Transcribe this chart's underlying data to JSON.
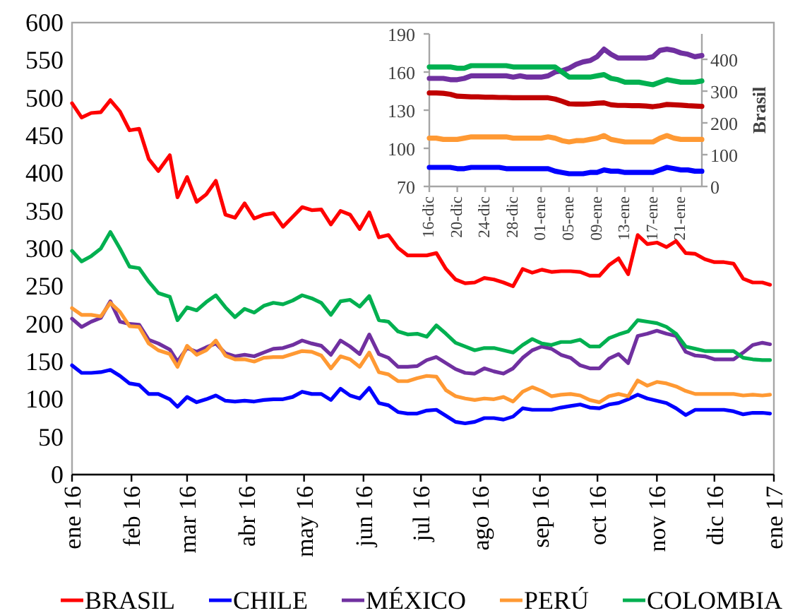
{
  "chart_data": [
    {
      "type": "line",
      "x": [
        "2016-01-01",
        "2016-01-06",
        "2016-01-11",
        "2016-01-16",
        "2016-01-21",
        "2016-01-26",
        "2016-01-31",
        "2016-02-05",
        "2016-02-10",
        "2016-02-15",
        "2016-02-21",
        "2016-02-25",
        "2016-03-01",
        "2016-03-06",
        "2016-03-11",
        "2016-03-16",
        "2016-03-21",
        "2016-03-26",
        "2016-03-31",
        "2016-04-05",
        "2016-04-10",
        "2016-04-15",
        "2016-04-20",
        "2016-04-25",
        "2016-04-30",
        "2016-05-05",
        "2016-05-10",
        "2016-05-15",
        "2016-05-20",
        "2016-05-25",
        "2016-05-30",
        "2016-06-04",
        "2016-06-09",
        "2016-06-14",
        "2016-06-19",
        "2016-06-24",
        "2016-06-29",
        "2016-07-04",
        "2016-07-09",
        "2016-07-14",
        "2016-07-19",
        "2016-07-24",
        "2016-07-29",
        "2016-08-03",
        "2016-08-08",
        "2016-08-13",
        "2016-08-18",
        "2016-08-23",
        "2016-08-28",
        "2016-09-02",
        "2016-09-07",
        "2016-09-12",
        "2016-09-17",
        "2016-09-22",
        "2016-09-27",
        "2016-10-02",
        "2016-10-07",
        "2016-10-12",
        "2016-10-17",
        "2016-10-22",
        "2016-10-27",
        "2016-11-01",
        "2016-11-06",
        "2016-11-11",
        "2016-11-16",
        "2016-11-21",
        "2016-11-26",
        "2016-12-01",
        "2016-12-06",
        "2016-12-11",
        "2016-12-16",
        "2016-12-21",
        "2016-12-26",
        "2016-12-30"
      ],
      "series": [
        {
          "name": "BRASIL",
          "color": "#ff0000",
          "values": [
            493,
            474,
            480,
            481,
            497,
            482,
            457,
            459,
            419,
            403,
            424,
            368,
            395,
            362,
            372,
            390,
            345,
            341,
            360,
            340,
            345,
            347,
            329,
            342,
            355,
            351,
            352,
            332,
            350,
            345,
            326,
            348,
            315,
            318,
            301,
            291,
            291,
            291,
            294,
            273,
            259,
            254,
            255,
            261,
            259,
            255,
            250,
            273,
            268,
            272,
            269,
            270,
            270,
            269,
            264,
            264,
            278,
            287,
            266,
            318,
            306,
            308,
            302,
            310,
            294,
            293,
            286,
            282,
            282,
            280,
            260,
            255,
            255,
            252
          ]
        },
        {
          "name": "CHILE",
          "color": "#0000ff",
          "values": [
            145,
            135,
            135,
            136,
            139,
            131,
            121,
            119,
            107,
            107,
            100,
            90,
            103,
            96,
            100,
            105,
            98,
            97,
            98,
            97,
            99,
            100,
            100,
            103,
            110,
            107,
            107,
            99,
            114,
            105,
            101,
            115,
            95,
            92,
            83,
            81,
            81,
            85,
            86,
            78,
            70,
            68,
            70,
            75,
            75,
            73,
            77,
            88,
            86,
            86,
            86,
            89,
            91,
            93,
            89,
            88,
            93,
            95,
            100,
            106,
            101,
            98,
            95,
            88,
            79,
            86,
            86,
            86,
            86,
            84,
            80,
            82,
            82,
            81
          ]
        },
        {
          "name": "MÉXICO",
          "color": "#7030a0",
          "values": [
            207,
            196,
            203,
            208,
            230,
            203,
            200,
            199,
            179,
            174,
            166,
            150,
            168,
            163,
            169,
            174,
            161,
            157,
            159,
            157,
            162,
            167,
            168,
            172,
            178,
            174,
            171,
            159,
            178,
            170,
            160,
            186,
            160,
            155,
            143,
            143,
            144,
            152,
            156,
            148,
            140,
            135,
            134,
            141,
            137,
            134,
            141,
            155,
            165,
            170,
            167,
            159,
            155,
            145,
            141,
            141,
            154,
            160,
            148,
            184,
            187,
            191,
            187,
            184,
            163,
            158,
            157,
            153,
            153,
            153,
            162,
            172,
            175,
            173
          ]
        },
        {
          "name": "PERÚ",
          "color": "#ff9933",
          "values": [
            221,
            212,
            212,
            210,
            228,
            216,
            197,
            196,
            174,
            165,
            160,
            143,
            171,
            159,
            165,
            178,
            158,
            153,
            153,
            150,
            155,
            156,
            156,
            160,
            164,
            163,
            158,
            141,
            157,
            153,
            143,
            162,
            136,
            133,
            124,
            124,
            128,
            131,
            130,
            112,
            104,
            101,
            99,
            101,
            100,
            103,
            97,
            110,
            116,
            111,
            104,
            106,
            107,
            105,
            99,
            96,
            104,
            107,
            104,
            125,
            118,
            123,
            121,
            117,
            111,
            107,
            107,
            107,
            107,
            107,
            105,
            106,
            105,
            106
          ]
        },
        {
          "name": "COLOMBIA",
          "color": "#00b050",
          "values": [
            297,
            283,
            290,
            300,
            322,
            300,
            276,
            274,
            256,
            241,
            236,
            205,
            222,
            218,
            229,
            238,
            222,
            209,
            220,
            215,
            224,
            228,
            226,
            231,
            238,
            234,
            228,
            212,
            230,
            232,
            223,
            237,
            205,
            203,
            190,
            186,
            187,
            183,
            198,
            187,
            175,
            170,
            165,
            168,
            168,
            165,
            162,
            172,
            180,
            174,
            172,
            176,
            176,
            179,
            170,
            170,
            181,
            186,
            190,
            205,
            203,
            201,
            196,
            187,
            170,
            167,
            164,
            164,
            164,
            164,
            155,
            153,
            152,
            152
          ]
        }
      ],
      "xlim": [
        "2016-01-01",
        "2017-01-01"
      ],
      "xticks": [
        {
          "value": "2016-01-01",
          "label": "ene 16"
        },
        {
          "value": "2016-02-01",
          "label": "feb 16"
        },
        {
          "value": "2016-03-01",
          "label": "mar 16"
        },
        {
          "value": "2016-04-01",
          "label": "abr 16"
        },
        {
          "value": "2016-05-01",
          "label": "may 16"
        },
        {
          "value": "2016-06-01",
          "label": "jun 16"
        },
        {
          "value": "2016-07-01",
          "label": "jul 16"
        },
        {
          "value": "2016-08-01",
          "label": "ago 16"
        },
        {
          "value": "2016-09-01",
          "label": "sep 16"
        },
        {
          "value": "2016-10-01",
          "label": "oct 16"
        },
        {
          "value": "2016-11-01",
          "label": "nov 16"
        },
        {
          "value": "2016-12-01",
          "label": "dic 16"
        },
        {
          "value": "2017-01-01",
          "label": "ene 17"
        }
      ],
      "ylim": [
        0,
        600
      ],
      "yticks": [
        0,
        50,
        100,
        150,
        200,
        250,
        300,
        350,
        400,
        450,
        500,
        550,
        600
      ],
      "legend": "bottom"
    },
    {
      "type": "line",
      "categories": [
        "16-dic",
        null,
        null,
        null,
        "20-dic",
        null,
        null,
        null,
        "24-dic",
        null,
        null,
        null,
        "28-dic",
        null,
        null,
        null,
        "01-ene",
        null,
        null,
        null,
        "05-ene",
        null,
        null,
        null,
        "09-ene",
        null,
        null,
        null,
        "13-ene",
        null,
        null,
        null,
        "17-ene",
        null,
        null,
        null,
        "21-ene",
        null,
        null,
        null
      ],
      "series": [
        {
          "color": "#c00000",
          "axis": "y2",
          "values": [
            294,
            294,
            293,
            290,
            284,
            283,
            282,
            282,
            281,
            281,
            280,
            280,
            279,
            279,
            279,
            279,
            279,
            279,
            275,
            268,
            260,
            259,
            259,
            260,
            262,
            263,
            257,
            255,
            255,
            254,
            254,
            253,
            251,
            254,
            258,
            257,
            256,
            254,
            253,
            252
          ]
        },
        {
          "color": "#0000ff",
          "values": [
            85,
            85,
            85,
            85,
            84,
            84,
            85,
            85,
            85,
            85,
            85,
            84,
            84,
            84,
            84,
            84,
            84,
            84,
            82,
            81,
            80,
            80,
            80,
            81,
            81,
            83,
            82,
            82,
            81,
            81,
            81,
            81,
            81,
            83,
            85,
            84,
            83,
            83,
            82,
            82
          ]
        },
        {
          "color": "#7030a0",
          "values": [
            155,
            155,
            155,
            154,
            154,
            155,
            157,
            157,
            157,
            157,
            157,
            157,
            156,
            157,
            156,
            156,
            156,
            157,
            160,
            161,
            163,
            166,
            168,
            169,
            172,
            178,
            174,
            171,
            171,
            171,
            171,
            171,
            172,
            177,
            178,
            177,
            175,
            174,
            172,
            173
          ]
        },
        {
          "color": "#ff9933",
          "values": [
            108,
            108,
            107,
            107,
            107,
            108,
            109,
            109,
            109,
            109,
            109,
            109,
            108,
            108,
            108,
            108,
            108,
            109,
            108,
            106,
            105,
            106,
            106,
            107,
            108,
            110,
            107,
            106,
            105,
            105,
            105,
            105,
            105,
            108,
            110,
            108,
            107,
            107,
            107,
            107
          ]
        },
        {
          "color": "#00b050",
          "values": [
            164,
            164,
            164,
            164,
            163,
            163,
            165,
            165,
            165,
            165,
            165,
            165,
            164,
            164,
            164,
            164,
            164,
            164,
            164,
            160,
            156,
            156,
            156,
            156,
            157,
            158,
            155,
            154,
            152,
            152,
            152,
            151,
            150,
            152,
            154,
            153,
            152,
            152,
            152,
            153
          ]
        }
      ],
      "ylim": [
        70,
        190
      ],
      "yticks": [
        70,
        100,
        130,
        160,
        190
      ],
      "y2lim": [
        0,
        480
      ],
      "y2ticks": [
        0,
        100,
        200,
        300,
        400
      ],
      "y2label": "Brasil"
    }
  ]
}
